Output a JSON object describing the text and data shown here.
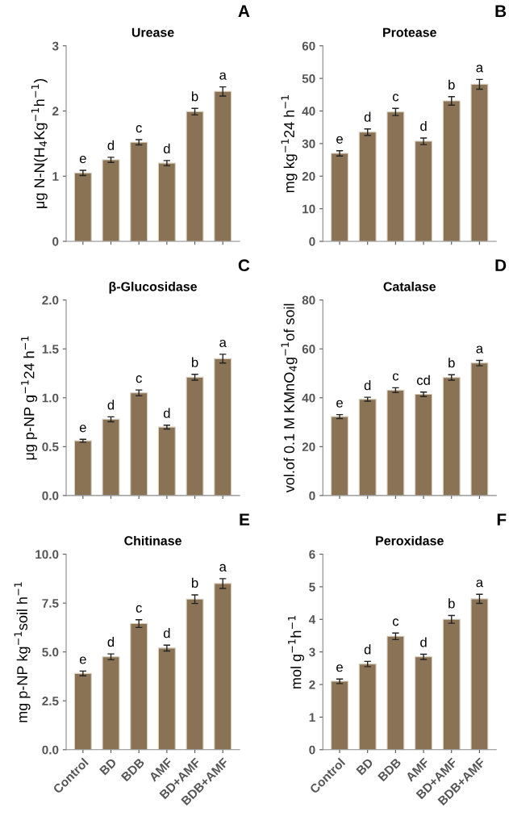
{
  "chart_data": [
    {
      "type": "bar",
      "title": "Urease",
      "ylabel": "μg N-N(H$_{4}$Kg$^{−1}$h$^{−1}$)",
      "categories": [
        "Control",
        "BD",
        "BDB",
        "AMF",
        "BD+AMF",
        "BDB+AMF"
      ],
      "values": [
        1.05,
        1.25,
        1.52,
        1.2,
        1.99,
        2.3
      ],
      "errors": [
        0.04,
        0.04,
        0.04,
        0.04,
        0.05,
        0.07
      ],
      "color": "#8a7355",
      "ylim": [
        0,
        3
      ],
      "yticks": [
        0,
        1,
        2,
        3
      ],
      "tick_labels": "y",
      "grid": false,
      "annotations": [
        "A",
        {
          "text": "e",
          "x": "Control",
          "y": 1.09
        },
        {
          "text": "d",
          "x": "BD",
          "y": 1.29
        },
        {
          "text": "c",
          "x": "BDB",
          "y": 1.56
        },
        {
          "text": "d",
          "x": "AMF",
          "y": 1.24
        },
        {
          "text": "b",
          "x": "BD+AMF",
          "y": 2.04
        },
        {
          "text": "a",
          "x": "BDB+AMF",
          "y": 2.37
        }
      ]
    },
    {
      "type": "bar",
      "title": "Protease",
      "ylabel": "mg kg$^{−1}$24 h$^{−1}$",
      "categories": [
        "Control",
        "BD",
        "BDB",
        "AMF",
        "BD+AMF",
        "BDB+AMF"
      ],
      "values": [
        27,
        33.5,
        39.7,
        30.7,
        43.1,
        48.2
      ],
      "errors": [
        0.8,
        1,
        1.1,
        1,
        1.3,
        1.5
      ],
      "color": "#8a7355",
      "ylim": [
        0,
        60
      ],
      "yticks": [
        0,
        10,
        20,
        30,
        40,
        50,
        60
      ],
      "tick_labels": "y",
      "grid": false,
      "annotations": [
        "B",
        {
          "text": "e",
          "x": "Control",
          "y": 27.8
        },
        {
          "text": "d",
          "x": "BD",
          "y": 34.5
        },
        {
          "text": "c",
          "x": "BDB",
          "y": 40.8
        },
        {
          "text": "d",
          "x": "AMF",
          "y": 31.7
        },
        {
          "text": "b",
          "x": "BD+AMF",
          "y": 44.4
        },
        {
          "text": "a",
          "x": "BDB+AMF",
          "y": 49.7
        }
      ]
    },
    {
      "type": "bar",
      "title": "β-Glucosidase",
      "ylabel": "μg p-NP g$^{−1}$24 h$^{−1}$",
      "categories": [
        "Control",
        "BD",
        "BDB",
        "AMF",
        "BD+AMF",
        "BDB+AMF"
      ],
      "values": [
        0.56,
        0.78,
        1.05,
        0.7,
        1.21,
        1.4
      ],
      "errors": [
        0.015,
        0.025,
        0.03,
        0.02,
        0.03,
        0.045
      ],
      "color": "#8a7355",
      "ylim": [
        0,
        2
      ],
      "yticks": [
        {
          "value": 0,
          "label": "0.0"
        },
        0.5,
        {
          "value": 1,
          "label": "1.0"
        },
        1.5,
        {
          "value": 2,
          "label": "2.0"
        }
      ],
      "tick_labels": "y",
      "grid": false,
      "annotations": [
        "C",
        {
          "text": "e",
          "x": "Control",
          "y": 0.575
        },
        {
          "text": "d",
          "x": "BD",
          "y": 0.805
        },
        {
          "text": "c",
          "x": "BDB",
          "y": 1.08
        },
        {
          "text": "d",
          "x": "AMF",
          "y": 0.72
        },
        {
          "text": "b",
          "x": "BD+AMF",
          "y": 1.24
        },
        {
          "text": "a",
          "x": "BDB+AMF",
          "y": 1.445
        }
      ]
    },
    {
      "type": "bar",
      "title": "Catalase",
      "ylabel": "vol.of 0.1 M KMnO$_{4}$g$^{−1}$of soil",
      "categories": [
        "Control",
        "BD",
        "BDB",
        "AMF",
        "BD+AMF",
        "BDB+AMF"
      ],
      "values": [
        32.3,
        39.4,
        43.1,
        41.4,
        48.3,
        54.2
      ],
      "errors": [
        0.8,
        0.8,
        1,
        0.9,
        1.1,
        1.1
      ],
      "color": "#8a7355",
      "ylim": [
        0,
        80
      ],
      "yticks": [
        0,
        20,
        40,
        60,
        80
      ],
      "tick_labels": "y",
      "grid": false,
      "annotations": [
        "D",
        {
          "text": "e",
          "x": "Control",
          "y": 33.1
        },
        {
          "text": "d",
          "x": "BD",
          "y": 40.2
        },
        {
          "text": "c",
          "x": "BDB",
          "y": 44.1
        },
        {
          "text": "cd",
          "x": "AMF",
          "y": 42.3
        },
        {
          "text": "b",
          "x": "BD+AMF",
          "y": 49.4
        },
        {
          "text": "a",
          "x": "BDB+AMF",
          "y": 55.3
        }
      ]
    },
    {
      "type": "bar",
      "title": "Chitinase",
      "ylabel": "mg p-NP kg$^{−1}$soil h$^{−1}$",
      "categories": [
        "Control",
        "BD",
        "BDB",
        "AMF",
        "BD+AMF",
        "BDB+AMF"
      ],
      "values": [
        3.9,
        4.75,
        6.45,
        5.2,
        7.7,
        8.5
      ],
      "errors": [
        0.12,
        0.15,
        0.2,
        0.15,
        0.22,
        0.25
      ],
      "color": "#8a7355",
      "ylim": [
        0,
        10
      ],
      "yticks": [
        {
          "value": 0,
          "label": "0.0"
        },
        2.5,
        {
          "value": 5,
          "label": "5.0"
        },
        7.5,
        {
          "value": 10,
          "label": "10.0"
        }
      ],
      "grid": false,
      "annotations": [
        "E",
        {
          "text": "e",
          "x": "Control",
          "y": 4.02
        },
        {
          "text": "d",
          "x": "BD",
          "y": 4.9
        },
        {
          "text": "c",
          "x": "BDB",
          "y": 6.65
        },
        {
          "text": "d",
          "x": "AMF",
          "y": 5.35
        },
        {
          "text": "b",
          "x": "BD+AMF",
          "y": 7.92
        },
        {
          "text": "a",
          "x": "BDB+AMF",
          "y": 8.75
        }
      ]
    },
    {
      "type": "bar",
      "title": "Peroxidase",
      "ylabel": "mol g$^{−1}$h$^{−1}$",
      "categories": [
        "Control",
        "BD",
        "BDB",
        "AMF",
        "BD+AMF",
        "BDB+AMF"
      ],
      "values": [
        2.1,
        2.63,
        3.48,
        2.85,
        4.0,
        4.63
      ],
      "errors": [
        0.07,
        0.08,
        0.1,
        0.08,
        0.12,
        0.14
      ],
      "color": "#8a7355",
      "ylim": [
        0,
        6
      ],
      "yticks": [
        0,
        1,
        2,
        3,
        4,
        5,
        6
      ],
      "grid": false,
      "annotations": [
        "F",
        {
          "text": "e",
          "x": "Control",
          "y": 2.17
        },
        {
          "text": "d",
          "x": "BD",
          "y": 2.71
        },
        {
          "text": "c",
          "x": "BDB",
          "y": 3.58
        },
        {
          "text": "d",
          "x": "AMF",
          "y": 2.93
        },
        {
          "text": "b",
          "x": "BD+AMF",
          "y": 4.12
        },
        {
          "text": "a",
          "x": "BDB+AMF",
          "y": 4.77
        }
      ]
    }
  ]
}
